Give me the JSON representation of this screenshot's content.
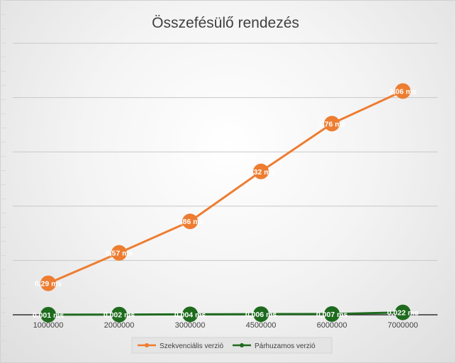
{
  "chart_data": {
    "type": "line",
    "title": "Összefésülő rendezés",
    "xlabel": "",
    "ylabel": "",
    "categories": [
      "1000000",
      "2000000",
      "3000000",
      "4500000",
      "6000000",
      "7000000"
    ],
    "ylim": [
      0,
      2.5
    ],
    "grid": true,
    "legend_position": "bottom",
    "series": [
      {
        "name": "Szekvenciális verzió",
        "color": "#ED7D31",
        "values": [
          0.29,
          0.57,
          0.86,
          1.32,
          1.76,
          2.06
        ],
        "labels": [
          "0,29 ms",
          "0,57 ms",
          "0,86 ms",
          "1,32 ms",
          "1,76 ms",
          "2,06 ms"
        ]
      },
      {
        "name": "Párhuzamos verzió",
        "color": "#1E6B1E",
        "values": [
          0.001,
          0.002,
          0.004,
          0.006,
          0.007,
          0.022
        ],
        "labels": [
          "0,001 ms",
          "0,002 ms",
          "0,004 ms",
          "0,006 ms",
          "0,007 ms",
          "0,022 ms"
        ]
      }
    ]
  }
}
